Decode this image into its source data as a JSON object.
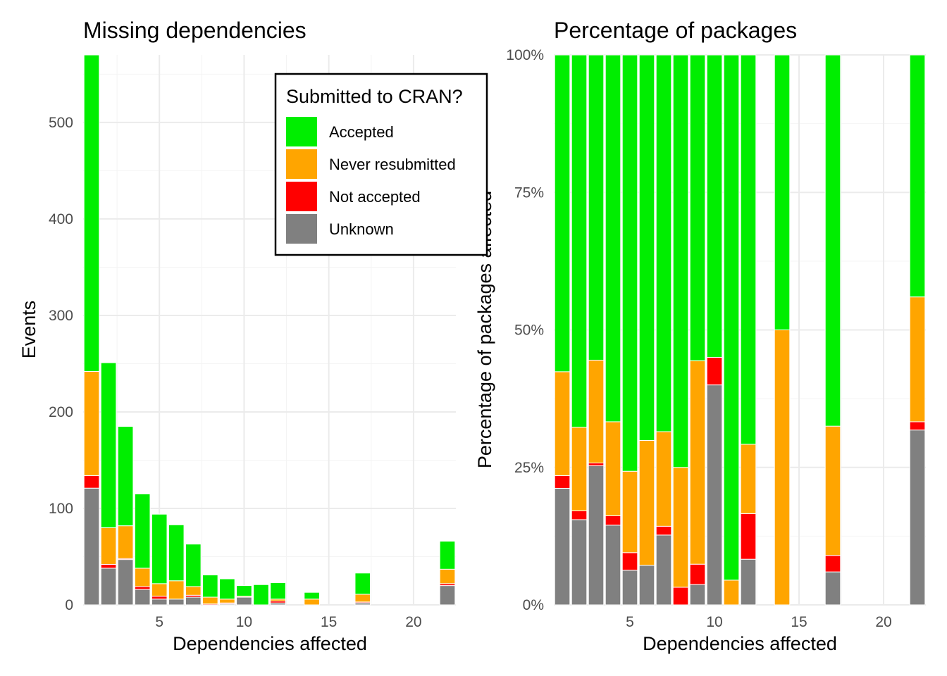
{
  "legend": {
    "title": "Submitted to CRAN?",
    "position": "top-right inside left panel",
    "items": [
      {
        "key": "accepted",
        "label": "Accepted",
        "color": "#00ee00"
      },
      {
        "key": "never",
        "label": "Never resubmitted",
        "color": "#ffa500"
      },
      {
        "key": "not",
        "label": "Not accepted",
        "color": "#ff0000"
      },
      {
        "key": "unknown",
        "label": "Unknown",
        "color": "#808080"
      }
    ]
  },
  "chart_data": [
    {
      "type": "bar",
      "stacked": true,
      "title": "Missing dependencies",
      "xlabel": "Dependencies affected",
      "ylabel": "Events",
      "xlim": [
        0.5,
        22.5
      ],
      "ylim": [
        0,
        570
      ],
      "x_ticks": [
        5,
        10,
        15,
        20
      ],
      "y_ticks": [
        0,
        100,
        200,
        300,
        400,
        500
      ],
      "grid": true,
      "x": [
        1,
        2,
        3,
        4,
        5,
        6,
        7,
        8,
        9,
        10,
        11,
        12,
        14,
        17,
        22
      ],
      "series": [
        {
          "key": "unknown",
          "name": "Unknown",
          "values": [
            121,
            38,
            47,
            16,
            6,
            6,
            8,
            0,
            1,
            8,
            0,
            2,
            0,
            2,
            20
          ]
        },
        {
          "key": "not",
          "name": "Not accepted",
          "values": [
            13,
            4,
            1,
            3,
            3,
            0,
            2,
            1,
            1,
            0,
            0,
            2,
            0,
            1,
            2
          ]
        },
        {
          "key": "never",
          "name": "Never resubmitted",
          "values": [
            108,
            38,
            34,
            19,
            13,
            19,
            9,
            7,
            4,
            1,
            0,
            2,
            6,
            8,
            15
          ]
        },
        {
          "key": "accepted",
          "name": "Accepted",
          "values": [
            328,
            171,
            103,
            77,
            72,
            58,
            44,
            23,
            21,
            11,
            21,
            17,
            7,
            22,
            29
          ]
        }
      ]
    },
    {
      "type": "bar",
      "stacked": true,
      "title": "Percentage of packages",
      "xlabel": "Dependencies affected",
      "ylabel": "Percentage of packages affected",
      "xlim": [
        0.5,
        22.5
      ],
      "ylim": [
        0,
        1
      ],
      "x_ticks": [
        5,
        10,
        15,
        20
      ],
      "y_ticks": [
        0,
        0.25,
        0.5,
        0.75,
        1
      ],
      "y_tick_labels": [
        "0%",
        "25%",
        "50%",
        "75%",
        "100%"
      ],
      "grid": true,
      "x": [
        1,
        2,
        3,
        4,
        5,
        6,
        7,
        8,
        9,
        10,
        11,
        12,
        14,
        17,
        22
      ],
      "series": [
        {
          "key": "unknown",
          "name": "Unknown",
          "values": [
            0.212,
            0.155,
            0.253,
            0.145,
            0.063,
            0.072,
            0.127,
            0.0,
            0.037,
            0.4,
            0.0,
            0.083,
            0.0,
            0.06,
            0.318
          ]
        },
        {
          "key": "not",
          "name": "Not accepted",
          "values": [
            0.023,
            0.016,
            0.005,
            0.017,
            0.032,
            0.0,
            0.016,
            0.032,
            0.037,
            0.05,
            0.0,
            0.083,
            0.0,
            0.03,
            0.015
          ]
        },
        {
          "key": "never",
          "name": "Never resubmitted",
          "values": [
            0.189,
            0.152,
            0.187,
            0.171,
            0.148,
            0.227,
            0.172,
            0.218,
            0.37,
            0.0,
            0.045,
            0.126,
            0.5,
            0.235,
            0.227
          ]
        },
        {
          "key": "accepted",
          "name": "Accepted",
          "values": [
            0.576,
            0.677,
            0.555,
            0.667,
            0.757,
            0.701,
            0.685,
            0.75,
            0.556,
            0.55,
            0.955,
            0.708,
            0.5,
            0.675,
            0.44
          ]
        }
      ]
    }
  ]
}
